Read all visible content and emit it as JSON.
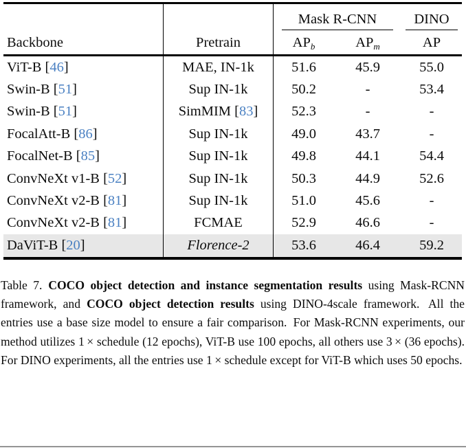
{
  "table": {
    "citation_color": "#4a80c2",
    "highlight_color": "#e7e7e7",
    "group_headers": [
      {
        "label": "Mask R-CNN"
      },
      {
        "label": "DINO"
      }
    ],
    "col_headers": {
      "backbone": "Backbone",
      "pretrain": "Pretrain",
      "ap_b_base": "AP",
      "ap_b_sub": "b",
      "ap_m_base": "AP",
      "ap_m_sub": "m",
      "dino_ap": "AP"
    },
    "rows": [
      {
        "backbone": {
          "name": "ViT-B",
          "cite": "46"
        },
        "pretrain": {
          "text": "MAE, IN-1k"
        },
        "ap_b": "51.6",
        "ap_m": "45.9",
        "dino_ap": "55.0",
        "highlight": false
      },
      {
        "backbone": {
          "name": "Swin-B",
          "cite": "51"
        },
        "pretrain": {
          "text": "Sup IN-1k"
        },
        "ap_b": "50.2",
        "ap_m": "-",
        "dino_ap": "53.4",
        "highlight": false
      },
      {
        "backbone": {
          "name": "Swin-B",
          "cite": "51"
        },
        "pretrain": {
          "text": "SimMIM",
          "cite": "83"
        },
        "ap_b": "52.3",
        "ap_m": "-",
        "dino_ap": "-",
        "highlight": false
      },
      {
        "backbone": {
          "name": "FocalAtt-B",
          "cite": "86"
        },
        "pretrain": {
          "text": "Sup IN-1k"
        },
        "ap_b": "49.0",
        "ap_m": "43.7",
        "dino_ap": "-",
        "highlight": false
      },
      {
        "backbone": {
          "name": "FocalNet-B",
          "cite": "85"
        },
        "pretrain": {
          "text": "Sup IN-1k"
        },
        "ap_b": "49.8",
        "ap_m": "44.1",
        "dino_ap": "54.4",
        "highlight": false
      },
      {
        "backbone": {
          "name": "ConvNeXt v1-B",
          "cite": "52"
        },
        "pretrain": {
          "text": "Sup IN-1k"
        },
        "ap_b": "50.3",
        "ap_m": "44.9",
        "dino_ap": "52.6",
        "highlight": false
      },
      {
        "backbone": {
          "name": "ConvNeXt v2-B",
          "cite": "81"
        },
        "pretrain": {
          "text": "Sup IN-1k"
        },
        "ap_b": "51.0",
        "ap_m": "45.6",
        "dino_ap": "-",
        "highlight": false
      },
      {
        "backbone": {
          "name": "ConvNeXt v2-B",
          "cite": "81"
        },
        "pretrain": {
          "text": "FCMAE"
        },
        "ap_b": "52.9",
        "ap_m": "46.6",
        "dino_ap": "-",
        "highlight": false
      },
      {
        "backbone": {
          "name": "DaViT-B",
          "cite": "20"
        },
        "pretrain": {
          "text": "Florence-2",
          "italic": true
        },
        "ap_b": "53.6",
        "ap_m": "46.4",
        "dino_ap": "59.2",
        "highlight": true
      }
    ]
  },
  "caption": {
    "segments": [
      {
        "t": "Table 7. ",
        "b": 0
      },
      {
        "t": "COCO object detection and instance segmentation results",
        "b": 1
      },
      {
        "t": " using Mask-RCNN framework, and ",
        "b": 0
      },
      {
        "t": "COCO object detection results",
        "b": 1
      },
      {
        "t": " using DINO-4scale framework.  All the entries use a base size model to ensure a fair comparison.  For Mask-RCNN experiments, our method utilizes 1 × schedule (12 epochs), ViT-B use 100 epochs, all others use 3 × (36 epochs). For DINO experiments, all the entries use 1 × schedule except for ViT-B which uses 50 epochs.",
        "b": 0
      }
    ]
  }
}
